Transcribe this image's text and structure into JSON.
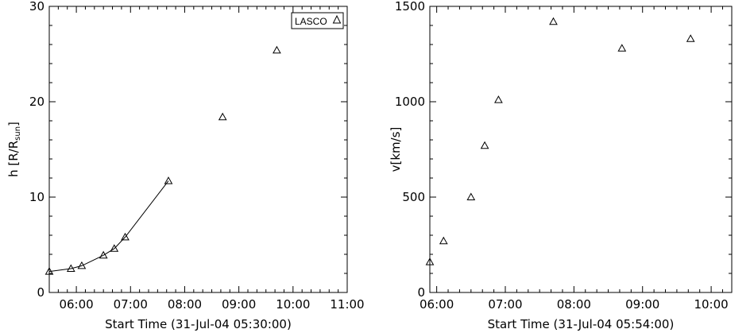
{
  "chart_data": [
    {
      "type": "scatter",
      "title": "",
      "xlabel": "Start Time (31-Jul-04 05:30:00)",
      "ylabel_main": "h [R/R",
      "ylabel_sub": "sun",
      "ylabel_close": "]",
      "xlim": [
        "05:30",
        "11:00"
      ],
      "ylim": [
        0,
        30
      ],
      "x_ticks": [
        "06:00",
        "07:00",
        "08:00",
        "09:00",
        "10:00",
        "11:00"
      ],
      "y_ticks": [
        "0",
        "10",
        "20",
        "30"
      ],
      "legend": {
        "label": "LASCO",
        "placement": "top-right"
      },
      "grid": false,
      "series": [
        {
          "name": "LASCO",
          "marker": "triangle",
          "line": true,
          "line_until_index": 6,
          "x": [
            "05:30",
            "05:54",
            "06:06",
            "06:30",
            "06:42",
            "06:54",
            "07:42",
            "08:42",
            "09:42"
          ],
          "y": [
            2.2,
            2.5,
            2.8,
            3.9,
            4.6,
            5.8,
            11.7,
            18.4,
            25.4
          ]
        }
      ]
    },
    {
      "type": "scatter",
      "title": "",
      "xlabel": "Start Time (31-Jul-04 05:54:00)",
      "ylabel": "v[km/s]",
      "xlim": [
        "05:54",
        "10:18"
      ],
      "ylim": [
        0,
        1500
      ],
      "x_ticks": [
        "06:00",
        "07:00",
        "08:00",
        "09:00",
        "10:00"
      ],
      "y_ticks": [
        "0",
        "500",
        "1000",
        "1500"
      ],
      "grid": false,
      "series": [
        {
          "marker": "triangle",
          "line": false,
          "x": [
            "05:54",
            "06:06",
            "06:30",
            "06:42",
            "06:54",
            "07:42",
            "08:42",
            "09:42"
          ],
          "y": [
            160,
            270,
            500,
            770,
            1010,
            1420,
            1280,
            1330
          ]
        }
      ]
    }
  ]
}
